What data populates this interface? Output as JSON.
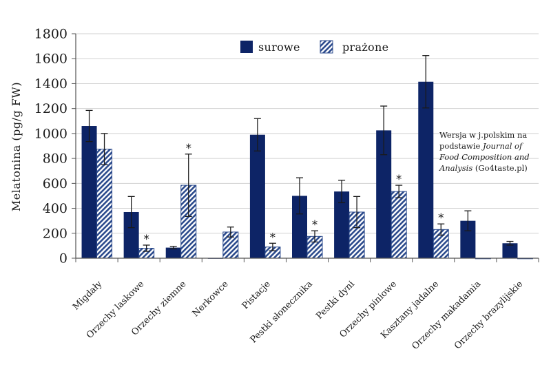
{
  "chart_data": {
    "type": "bar",
    "ylabel": "Melatonina   (pg/g FW)",
    "ylim": [
      0,
      1800
    ],
    "yticks": [
      0,
      200,
      400,
      600,
      800,
      1000,
      1200,
      1400,
      1600,
      1800
    ],
    "grid": true,
    "legend_position": "top-center",
    "categories": [
      "Migdały",
      "Orzechy laskowe",
      "Orzechy ziemne",
      "Nerkowce",
      "Pistacje",
      "Pestki słonecznika",
      "Pestki dyni",
      "Orzechy piniowe",
      "Kasztany jadalne",
      "Orzechy makadamia",
      "Orzechy brazylijskie"
    ],
    "series": [
      {
        "name": "surowe",
        "pattern": "solid",
        "color": "#0d2466",
        "values": [
          1060,
          370,
          85,
          0,
          990,
          500,
          535,
          1025,
          1415,
          300,
          120
        ],
        "errors": [
          125,
          125,
          10,
          0,
          130,
          145,
          90,
          195,
          210,
          80,
          15
        ],
        "significant": [
          false,
          false,
          false,
          false,
          false,
          false,
          false,
          false,
          false,
          false,
          false
        ]
      },
      {
        "name": "prażone",
        "pattern": "hatched",
        "color": "#2b4a8c",
        "values": [
          875,
          80,
          585,
          210,
          90,
          175,
          370,
          535,
          230,
          0,
          0
        ],
        "errors": [
          125,
          25,
          250,
          40,
          30,
          45,
          125,
          50,
          45,
          0,
          0
        ],
        "significant": [
          false,
          true,
          true,
          false,
          true,
          true,
          false,
          true,
          true,
          false,
          false
        ]
      }
    ],
    "significance_marker": "*"
  },
  "note": {
    "line1": "Wersja w j.polskim na",
    "line2a": "podstawie ",
    "line2b": "Journal of",
    "line3": "Food Composition and",
    "line4a": "Analysis",
    "line4b": " (Go4taste.pl)"
  }
}
